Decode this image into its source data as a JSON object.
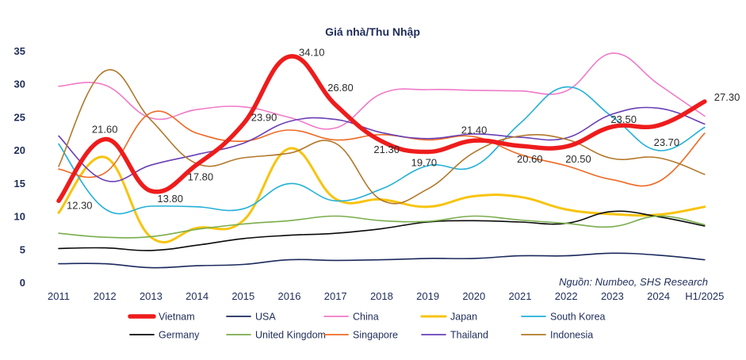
{
  "chart_data": {
    "type": "line",
    "title": "Giá nhà/Thu Nhập",
    "source": "Nguồn: Numbeo, SHS Research",
    "categories": [
      "2011",
      "2012",
      "2013",
      "2014",
      "2015",
      "2016",
      "2017",
      "2018",
      "2019",
      "2020",
      "2021",
      "2022",
      "2023",
      "2024",
      "H1/2025"
    ],
    "ylim": [
      0,
      35
    ],
    "yticks": [
      "0",
      "5",
      "10",
      "15",
      "20",
      "25",
      "30",
      "35"
    ],
    "grid": false,
    "legend_position": "bottom",
    "series": [
      {
        "name": "Vietnam",
        "color": "#ee1c1c",
        "values": [
          12.3,
          21.6,
          13.8,
          17.8,
          23.9,
          34.1,
          26.8,
          21.3,
          19.7,
          21.4,
          20.6,
          20.5,
          23.5,
          23.7,
          27.3
        ]
      },
      {
        "name": "USA",
        "color": "#1b2a5c",
        "values": [
          2.8,
          2.8,
          2.2,
          2.5,
          2.7,
          3.4,
          3.3,
          3.4,
          3.6,
          3.6,
          4.0,
          4.0,
          4.4,
          4.1,
          3.4
        ]
      },
      {
        "name": "China",
        "color": "#f07ac8",
        "values": [
          29.6,
          29.8,
          24.8,
          26.1,
          26.5,
          24.9,
          23.3,
          28.5,
          29.1,
          29.0,
          28.9,
          28.9,
          34.6,
          29.9,
          25.1
        ]
      },
      {
        "name": "Japan",
        "color": "#f7c40f",
        "values": [
          10.5,
          18.9,
          6.8,
          8.2,
          9.3,
          20.2,
          12.6,
          12.5,
          11.4,
          13.0,
          12.9,
          11.0,
          10.3,
          10.2,
          11.4
        ]
      },
      {
        "name": "South Korea",
        "color": "#22b0d8",
        "values": [
          20.9,
          11.1,
          11.5,
          11.4,
          11.1,
          14.9,
          12.3,
          14.1,
          17.6,
          17.5,
          24.0,
          29.5,
          25.0,
          19.9,
          23.4
        ]
      },
      {
        "name": "Germany",
        "color": "#0a0a0a",
        "values": [
          5.1,
          5.2,
          4.8,
          5.6,
          6.6,
          7.1,
          7.4,
          8.1,
          9.1,
          9.3,
          9.1,
          8.9,
          10.7,
          9.9,
          8.5
        ]
      },
      {
        "name": "United Kingdom",
        "color": "#7aad4c",
        "values": [
          7.4,
          6.8,
          6.9,
          8.0,
          8.8,
          9.3,
          10.0,
          9.3,
          9.2,
          10.0,
          9.4,
          8.9,
          8.4,
          10.0,
          8.7
        ]
      },
      {
        "name": "Singapore",
        "color": "#ee6a25",
        "values": [
          17.1,
          16.5,
          25.6,
          22.5,
          21.3,
          23.0,
          21.5,
          22.3,
          21.5,
          22.0,
          19.3,
          17.6,
          15.5,
          15.2,
          22.5
        ]
      },
      {
        "name": "Thailand",
        "color": "#6a3fb5",
        "values": [
          22.1,
          15.4,
          17.7,
          19.3,
          21.0,
          24.3,
          24.6,
          22.6,
          21.7,
          22.4,
          21.9,
          21.8,
          25.4,
          26.3,
          23.9
        ]
      },
      {
        "name": "Indonesia",
        "color": "#b3772a",
        "values": [
          17.5,
          31.9,
          24.5,
          17.9,
          18.8,
          19.5,
          21.0,
          12.4,
          14.1,
          19.6,
          22.1,
          21.6,
          18.7,
          18.8,
          16.3
        ]
      }
    ],
    "data_labels": [
      {
        "series": "Vietnam",
        "index": 0,
        "text": "12.30"
      },
      {
        "series": "Vietnam",
        "index": 1,
        "text": "21.60"
      },
      {
        "series": "Vietnam",
        "index": 2,
        "text": "13.80"
      },
      {
        "series": "Vietnam",
        "index": 3,
        "text": "17.80"
      },
      {
        "series": "Vietnam",
        "index": 4,
        "text": "23.90"
      },
      {
        "series": "Vietnam",
        "index": 5,
        "text": "34.10"
      },
      {
        "series": "Vietnam",
        "index": 6,
        "text": "26.80"
      },
      {
        "series": "Vietnam",
        "index": 7,
        "text": "21.30"
      },
      {
        "series": "Vietnam",
        "index": 8,
        "text": "19.70"
      },
      {
        "series": "Vietnam",
        "index": 9,
        "text": "21.40"
      },
      {
        "series": "Vietnam",
        "index": 10,
        "text": "20.60"
      },
      {
        "series": "Vietnam",
        "index": 11,
        "text": "20.50"
      },
      {
        "series": "Vietnam",
        "index": 12,
        "text": "23.50"
      },
      {
        "series": "Vietnam",
        "index": 13,
        "text": "23.70"
      },
      {
        "series": "Vietnam",
        "index": 14,
        "text": "27.30"
      }
    ]
  }
}
